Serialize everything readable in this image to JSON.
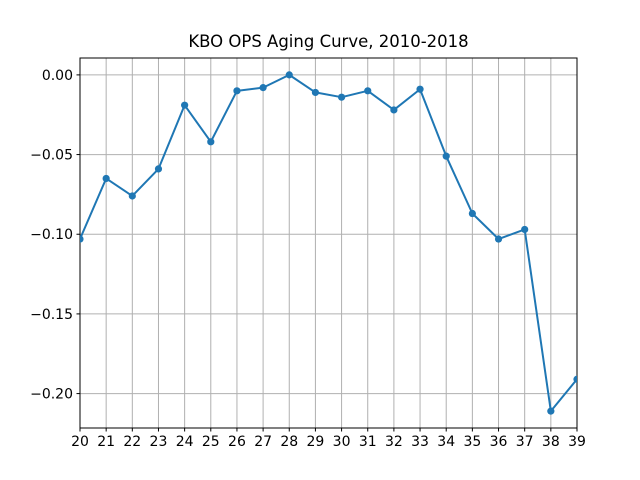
{
  "chart_data": {
    "type": "line",
    "title": "KBO OPS Aging Curve, 2010-2018",
    "x": [
      20,
      21,
      22,
      23,
      24,
      25,
      26,
      27,
      28,
      29,
      30,
      31,
      32,
      33,
      34,
      35,
      36,
      37,
      38,
      39
    ],
    "y": [
      -0.103,
      -0.065,
      -0.076,
      -0.059,
      -0.019,
      -0.042,
      -0.01,
      -0.008,
      0.0,
      -0.011,
      -0.014,
      -0.01,
      -0.022,
      -0.009,
      -0.051,
      -0.087,
      -0.103,
      -0.097,
      -0.211,
      -0.191
    ],
    "xlabel": "",
    "ylabel": "",
    "xlim": [
      20,
      39
    ],
    "ylim": [
      -0.2216,
      0.0106
    ],
    "xticks": [
      20,
      21,
      22,
      23,
      24,
      25,
      26,
      27,
      28,
      29,
      30,
      31,
      32,
      33,
      34,
      35,
      36,
      37,
      38,
      39
    ],
    "xtick_labels": [
      "20",
      "21",
      "22",
      "23",
      "24",
      "25",
      "26",
      "27",
      "28",
      "29",
      "30",
      "31",
      "32",
      "33",
      "34",
      "35",
      "36",
      "37",
      "38",
      "39"
    ],
    "yticks": [
      0,
      -0.05,
      -0.1,
      -0.15,
      -0.2
    ],
    "ytick_labels": [
      "0.00",
      "−0.05",
      "−0.10",
      "−0.15",
      "−0.20"
    ],
    "grid": true,
    "legend_position": "none",
    "line_color": "#1f77b4",
    "marker": "circle",
    "grid_color": "#b0b0b0",
    "spine_color": "#000000"
  }
}
